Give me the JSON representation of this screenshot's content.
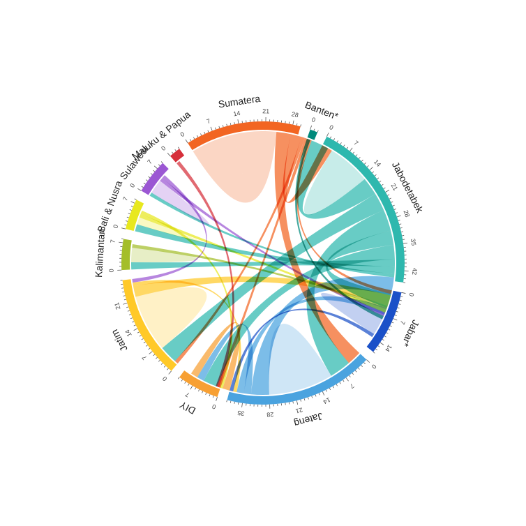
{
  "chart_data": {
    "type": "chord",
    "tick_step": 7,
    "segments": [
      {
        "name": "Sumatera",
        "total": 30,
        "color": "#F26522",
        "ticks": [
          0,
          7,
          14,
          21,
          28
        ]
      },
      {
        "name": "Banten*",
        "total": 2,
        "color": "#00897B",
        "ticks": [
          0
        ]
      },
      {
        "name": "Jabodetabek",
        "total": 45,
        "color": "#2EB8AE",
        "ticks": [
          0,
          7,
          14,
          21,
          28,
          35,
          42
        ]
      },
      {
        "name": "Jabar*",
        "total": 17,
        "color": "#1A50C8",
        "ticks": [
          0,
          7,
          14
        ]
      },
      {
        "name": "Jateng",
        "total": 39,
        "color": "#4AA3DF",
        "ticks": [
          0,
          7,
          14,
          21,
          28,
          35
        ]
      },
      {
        "name": "DIY",
        "total": 11,
        "color": "#F7A033",
        "ticks": [
          0,
          7
        ]
      },
      {
        "name": "Jatim",
        "total": 27,
        "color": "#FFC928",
        "ticks": [
          0,
          7,
          14,
          21
        ]
      },
      {
        "name": "Kalimantan",
        "total": 8,
        "color": "#A4BE2A",
        "ticks": [
          0,
          7
        ]
      },
      {
        "name": "Bali & Nusra",
        "total": 8,
        "color": "#E8E81E",
        "ticks": [
          0,
          7
        ]
      },
      {
        "name": "Sulawesi",
        "total": 9,
        "color": "#9B57D3",
        "ticks": [
          0,
          7
        ]
      },
      {
        "name": "Maluku & Papua",
        "total": 3,
        "color": "#D62F3A",
        "ticks": [
          0
        ]
      }
    ],
    "flows": [
      {
        "from": "Sumatera",
        "to": "Sumatera",
        "value": 12
      },
      {
        "from": "Sumatera",
        "to": "Jateng",
        "value": 4
      },
      {
        "from": "Sumatera",
        "to": "Jabodetabek",
        "value": 3
      },
      {
        "from": "Sumatera",
        "to": "Jatim",
        "value": 1
      },
      {
        "from": "Sumatera",
        "to": "DIY",
        "value": 1
      },
      {
        "from": "Sumatera",
        "to": "Jabar*",
        "value": 1
      },
      {
        "from": "Jabodetabek",
        "to": "Jabodetabek",
        "value": 6
      },
      {
        "from": "Jabodetabek",
        "to": "Sumatera",
        "value": 5
      },
      {
        "from": "Jabodetabek",
        "to": "Jatim",
        "value": 5
      },
      {
        "from": "Jabodetabek",
        "to": "Jateng",
        "value": 6
      },
      {
        "from": "Jabodetabek",
        "to": "Jabar*",
        "value": 4
      },
      {
        "from": "Jabodetabek",
        "to": "DIY",
        "value": 4
      },
      {
        "from": "Jabodetabek",
        "to": "Kalimantan",
        "value": 2
      },
      {
        "from": "Jabodetabek",
        "to": "Bali & Nusra",
        "value": 2
      },
      {
        "from": "Jabodetabek",
        "to": "Sulawesi",
        "value": 1
      },
      {
        "from": "Jateng",
        "to": "Jateng",
        "value": 9
      },
      {
        "from": "Jateng",
        "to": "Jabodetabek",
        "value": 5
      },
      {
        "from": "Jateng",
        "to": "DIY",
        "value": 2
      },
      {
        "from": "Jateng",
        "to": "Jabar*",
        "value": 2
      },
      {
        "from": "Jatim",
        "to": "Jatim",
        "value": 8
      },
      {
        "from": "Jatim",
        "to": "Jabodetabek",
        "value": 3
      },
      {
        "from": "Jatim",
        "to": "Jateng",
        "value": 1
      },
      {
        "from": "Jabar*",
        "to": "Jabar*",
        "value": 3
      },
      {
        "from": "Jabar*",
        "to": "Jateng",
        "value": 1
      },
      {
        "from": "DIY",
        "to": "Jateng",
        "value": 2
      },
      {
        "from": "Kalimantan",
        "to": "Kalimantan",
        "value": 2
      },
      {
        "from": "Kalimantan",
        "to": "Jabodetabek",
        "value": 1
      },
      {
        "from": "Bali & Nusra",
        "to": "Bali & Nusra",
        "value": 1
      },
      {
        "from": "Bali & Nusra",
        "to": "Jabodetabek",
        "value": 1
      },
      {
        "from": "Bali & Nusra",
        "to": "Jateng",
        "value": 1
      },
      {
        "from": "Sulawesi",
        "to": "Sulawesi",
        "value": 2
      },
      {
        "from": "Sulawesi",
        "to": "Jabodetabek",
        "value": 1
      },
      {
        "from": "Sulawesi",
        "to": "Jatim",
        "value": 1
      },
      {
        "from": "Maluku & Papua",
        "to": "Jateng",
        "value": 1
      },
      {
        "from": "Banten*",
        "to": "Jabodetabek",
        "value": 1
      }
    ]
  }
}
